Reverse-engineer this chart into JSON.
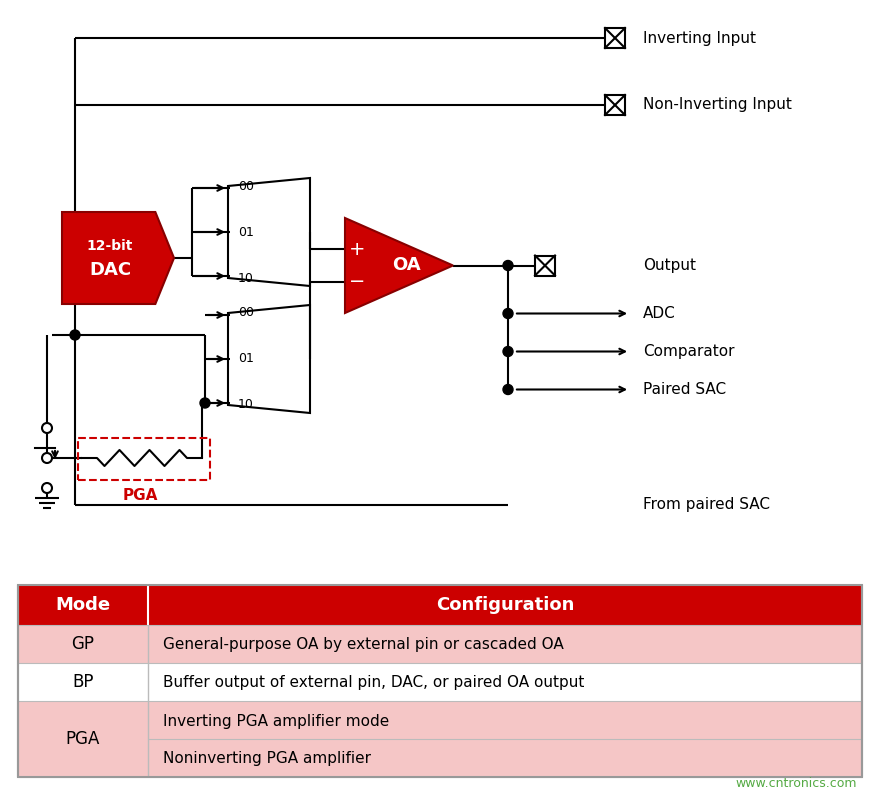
{
  "bg_color": "#ffffff",
  "red_color": "#cc0000",
  "light_red": "#f5c6c6",
  "header_red": "#cc0000",
  "table_header_text": "#ffffff",
  "output_labels": [
    "Output",
    "ADC",
    "Comparator",
    "Paired SAC"
  ],
  "watermark": "www.cntronics.com"
}
